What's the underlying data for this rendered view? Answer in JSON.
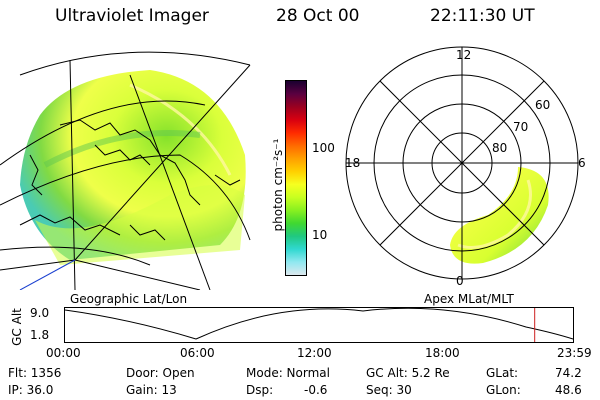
{
  "header": {
    "title": "Ultraviolet Imager",
    "date": "28 Oct 00",
    "time": "22:11:30 UT"
  },
  "geo_panel": {
    "label": "Geographic Lat/Lon"
  },
  "colorbar": {
    "unit_label": "photon cm⁻²s⁻¹",
    "ticks": [
      "100",
      "10"
    ],
    "colors": [
      "#1a0030",
      "#5a0040",
      "#9a0020",
      "#d80010",
      "#ff2a00",
      "#ff6a00",
      "#ffa000",
      "#ffd000",
      "#f6ff20",
      "#c8ff20",
      "#88f020",
      "#40d830",
      "#20c880",
      "#30d8d0",
      "#90e8f0",
      "#dce8ee"
    ]
  },
  "polar_panel": {
    "label": "Apex MLat/MLT",
    "mlt_labels": {
      "top": "12",
      "left": "18",
      "right": "6",
      "bottom": "0"
    },
    "lat_labels": [
      "60",
      "70",
      "80"
    ]
  },
  "altitude_plot": {
    "ylabel": "GC Alt",
    "yticks": [
      "9.0",
      "1.8"
    ],
    "xticks": [
      "00:00",
      "06:00",
      "12:00",
      "18:00",
      "23:59"
    ],
    "current_time_hours": 22.19,
    "marker_color": "#cc2020"
  },
  "info": {
    "flt": "Flt: 1356",
    "ip": "IP: 36.0",
    "door": "Door: Open",
    "gain": "Gain: 13",
    "mode": "Mode: Normal",
    "dsp_label": "Dsp:",
    "dsp_value": "-0.6",
    "gc_alt": "GC Alt: 5.2 Re",
    "seq": "Seq: 30",
    "glat_label": "GLat:",
    "glat_value": "74.2",
    "glon_label": "GLon:",
    "glon_value": "48.6"
  }
}
